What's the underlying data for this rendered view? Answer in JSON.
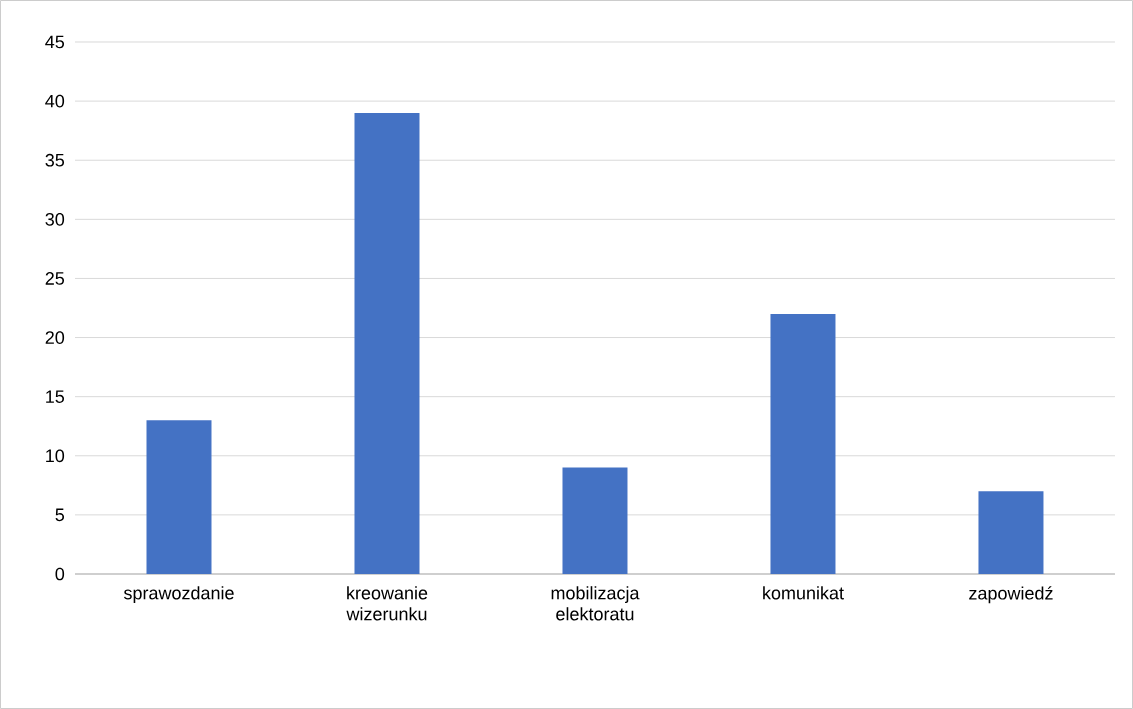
{
  "chart_data": {
    "type": "bar",
    "categories": [
      "sprawozdanie",
      "kreowanie wizerunku",
      "mobilizacja elektoratu",
      "komunikat",
      "zapowiedź"
    ],
    "values": [
      13,
      39,
      9,
      22,
      7
    ],
    "color": "#4472c4",
    "ylim": [
      0,
      45
    ],
    "yticks": [
      0,
      5,
      10,
      15,
      20,
      25,
      30,
      35,
      40,
      45
    ],
    "grid": "y"
  }
}
